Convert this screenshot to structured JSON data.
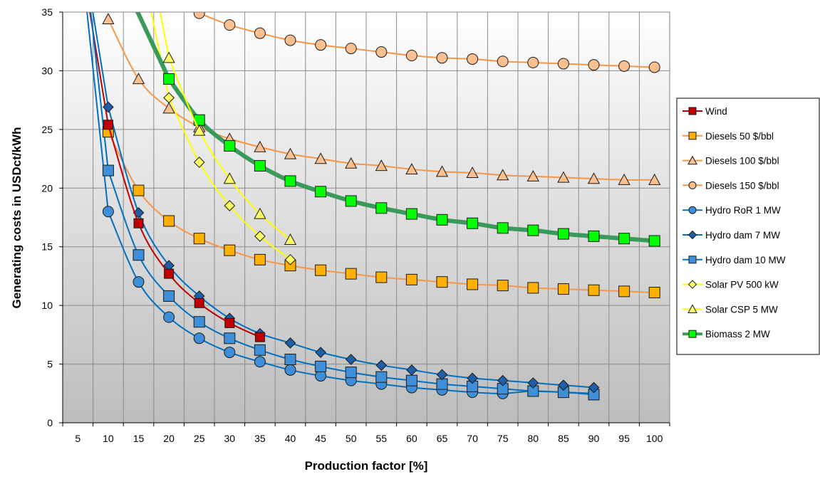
{
  "chart_data": {
    "type": "line",
    "title": "",
    "xlabel": "Production factor [%]",
    "ylabel": "Generating costs in USDct/kWh",
    "xlim": [
      2.5,
      102.5
    ],
    "ylim": [
      0,
      35
    ],
    "x_ticks": [
      5,
      10,
      15,
      20,
      25,
      30,
      35,
      40,
      45,
      50,
      55,
      60,
      65,
      70,
      75,
      80,
      85,
      90,
      95,
      100
    ],
    "y_ticks": [
      0,
      5,
      10,
      15,
      20,
      25,
      30,
      35
    ],
    "grid": true,
    "legend_position": "right",
    "series": [
      {
        "name": "Wind",
        "color": "#c00000",
        "marker": "square",
        "line_width": 2,
        "x": [
          10,
          15,
          20,
          25,
          30,
          35
        ],
        "y": [
          25.4,
          17.0,
          12.7,
          10.2,
          8.5,
          7.3
        ]
      },
      {
        "name": "Diesels 50 $/bbl",
        "color": "#f79646",
        "fill": "#ffb000",
        "marker": "square",
        "line_width": 2,
        "x": [
          10,
          15,
          20,
          25,
          30,
          35,
          40,
          45,
          50,
          55,
          60,
          65,
          70,
          75,
          80,
          85,
          90,
          95,
          100
        ],
        "y": [
          24.8,
          19.8,
          17.2,
          15.7,
          14.7,
          13.9,
          13.4,
          13.0,
          12.7,
          12.4,
          12.2,
          12.0,
          11.8,
          11.7,
          11.5,
          11.4,
          11.3,
          11.2,
          11.1
        ]
      },
      {
        "name": "Diesels 100 $/bbl",
        "color": "#f79646",
        "fill": "#fac090",
        "marker": "triangle",
        "line_width": 2,
        "x": [
          10,
          15,
          20,
          25,
          30,
          35,
          40,
          45,
          50,
          55,
          60,
          65,
          70,
          75,
          80,
          85,
          90,
          95,
          100
        ],
        "y": [
          34.4,
          29.3,
          26.8,
          25.2,
          24.2,
          23.5,
          22.9,
          22.5,
          22.1,
          21.9,
          21.6,
          21.4,
          21.3,
          21.1,
          21.0,
          20.9,
          20.8,
          20.7,
          20.7
        ]
      },
      {
        "name": "Diesels 150 $/bbl",
        "color": "#f79646",
        "fill": "#fac090",
        "marker": "circle",
        "line_width": 2,
        "x": [
          25,
          30,
          35,
          40,
          45,
          50,
          55,
          60,
          65,
          70,
          75,
          80,
          85,
          90,
          95,
          100
        ],
        "y": [
          34.9,
          33.9,
          33.2,
          32.6,
          32.2,
          31.9,
          31.6,
          31.3,
          31.1,
          31.0,
          30.8,
          30.7,
          30.6,
          30.5,
          30.4,
          30.3
        ]
      },
      {
        "name": "Hydro RoR 1 MW",
        "color": "#0070c0",
        "fill": "#3e8fd8",
        "marker": "circle",
        "line_width": 2,
        "x": [
          10,
          15,
          20,
          25,
          30,
          35,
          40,
          45,
          50,
          55,
          60,
          65,
          70,
          75,
          80,
          85,
          90
        ],
        "y": [
          18.0,
          12.0,
          9.0,
          7.2,
          6.0,
          5.2,
          4.5,
          4.0,
          3.6,
          3.3,
          3.0,
          2.8,
          2.6,
          2.5,
          2.7,
          2.6,
          2.5
        ]
      },
      {
        "name": "Hydro dam 7 MW",
        "color": "#0070c0",
        "fill": "#1f5fa8",
        "marker": "diamond",
        "line_width": 2,
        "x": [
          10,
          15,
          20,
          25,
          30,
          35,
          40,
          45,
          50,
          55,
          60,
          65,
          70,
          75,
          80,
          85,
          90
        ],
        "y": [
          26.9,
          17.9,
          13.4,
          10.8,
          8.9,
          7.6,
          6.8,
          6.0,
          5.4,
          4.9,
          4.5,
          4.1,
          3.8,
          3.6,
          3.4,
          3.2,
          3.0
        ]
      },
      {
        "name": "Hydro dam 10 MW",
        "color": "#0070c0",
        "fill": "#3e8fd8",
        "marker": "square",
        "line_width": 2,
        "x": [
          10,
          15,
          20,
          25,
          30,
          35,
          40,
          45,
          50,
          55,
          60,
          65,
          70,
          75,
          80,
          85,
          90
        ],
        "y": [
          21.5,
          14.3,
          10.8,
          8.6,
          7.2,
          6.2,
          5.4,
          4.8,
          4.3,
          3.9,
          3.6,
          3.3,
          3.1,
          2.9,
          2.7,
          2.6,
          2.4
        ]
      },
      {
        "name": "Solar PV 500 kW",
        "color": "#ffff00",
        "fill": "#ffff66",
        "marker": "diamond",
        "line_width": 2,
        "x": [
          20,
          25,
          30,
          35,
          40
        ],
        "y": [
          27.7,
          22.2,
          18.5,
          15.9,
          13.9
        ]
      },
      {
        "name": "Solar CSP 5 MW",
        "color": "#ffff00",
        "fill": "#ffff66",
        "marker": "triangle",
        "line_width": 2,
        "x": [
          20,
          25,
          30,
          35,
          40
        ],
        "y": [
          31.1,
          24.9,
          20.8,
          17.8,
          15.6
        ]
      },
      {
        "name": "Biomass 2 MW",
        "color": "#3a9a5a",
        "fill": "#00ff00",
        "marker": "square",
        "line_width": 6,
        "x": [
          20,
          25,
          30,
          35,
          40,
          45,
          50,
          55,
          60,
          65,
          70,
          75,
          80,
          85,
          90,
          95,
          100
        ],
        "y": [
          29.3,
          25.8,
          23.6,
          21.9,
          20.6,
          19.7,
          18.9,
          18.3,
          17.8,
          17.3,
          17.0,
          16.6,
          16.4,
          16.1,
          15.9,
          15.7,
          15.5
        ]
      }
    ],
    "curve_extensions": [
      {
        "series": "Wind",
        "x": [
          6.5,
          10
        ],
        "y": [
          36.5,
          25.4
        ]
      },
      {
        "series": "Hydro RoR 1 MW",
        "x": [
          6.2,
          10
        ],
        "y": [
          36.5,
          18.0
        ]
      },
      {
        "series": "Hydro dam 7 MW",
        "x": [
          7.0,
          10
        ],
        "y": [
          36.5,
          26.9
        ]
      },
      {
        "series": "Hydro dam 10 MW",
        "x": [
          6.8,
          10
        ],
        "y": [
          36.5,
          21.5
        ]
      },
      {
        "series": "Solar PV 500 kW",
        "x": [
          16.5,
          20
        ],
        "y": [
          36.5,
          27.7
        ]
      },
      {
        "series": "Solar CSP 5 MW",
        "x": [
          18.0,
          20
        ],
        "y": [
          36.5,
          31.1
        ]
      },
      {
        "series": "Biomass 2 MW",
        "x": [
          13.5,
          20
        ],
        "y": [
          36.5,
          29.3
        ]
      }
    ]
  }
}
